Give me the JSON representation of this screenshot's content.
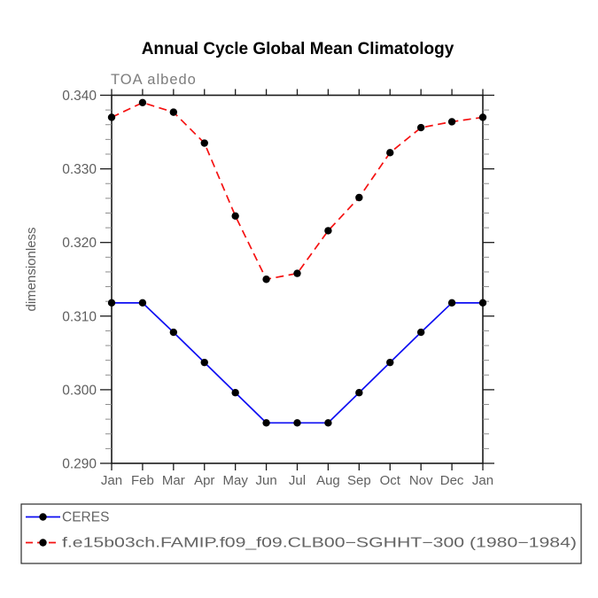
{
  "chart_data": {
    "type": "line",
    "title": "Annual Cycle Global Mean Climatology",
    "subtitle": "TOA albedo",
    "ylabel": "dimensionless",
    "xlabel": "",
    "categories": [
      "Jan",
      "Feb",
      "Mar",
      "Apr",
      "May",
      "Jun",
      "Jul",
      "Aug",
      "Sep",
      "Oct",
      "Nov",
      "Dec",
      "Jan"
    ],
    "ylim": [
      0.29,
      0.34
    ],
    "ytick_major_interval": 0.01,
    "ytick_minor_interval": 0.002,
    "ytick_labels": [
      "0.290",
      "0.300",
      "0.310",
      "0.320",
      "0.330",
      "0.340"
    ],
    "grid": false,
    "legend_position": "bottom box",
    "frame_color": "#1a1a1a",
    "axis_text_color": "#5f5f5f",
    "marker_color": "#000000",
    "series": [
      {
        "name": "CERES",
        "color": "#0d0df2",
        "line_style": "solid",
        "marker": "circle",
        "values": [
          0.3118,
          0.3118,
          0.3078,
          0.3037,
          0.2996,
          0.2955,
          0.2955,
          0.2955,
          0.2996,
          0.3037,
          0.3078,
          0.3118,
          0.3118
        ]
      },
      {
        "name": "f.e15b03ch.FAMIP.f09_f09.CLB00−SGHHT−300 (1980−1984)",
        "color": "#f51111",
        "line_style": "dashed",
        "marker": "circle",
        "values": [
          0.337,
          0.339,
          0.3377,
          0.3335,
          0.3236,
          0.315,
          0.3158,
          0.3216,
          0.3261,
          0.3322,
          0.3356,
          0.3364,
          0.337
        ]
      }
    ]
  }
}
